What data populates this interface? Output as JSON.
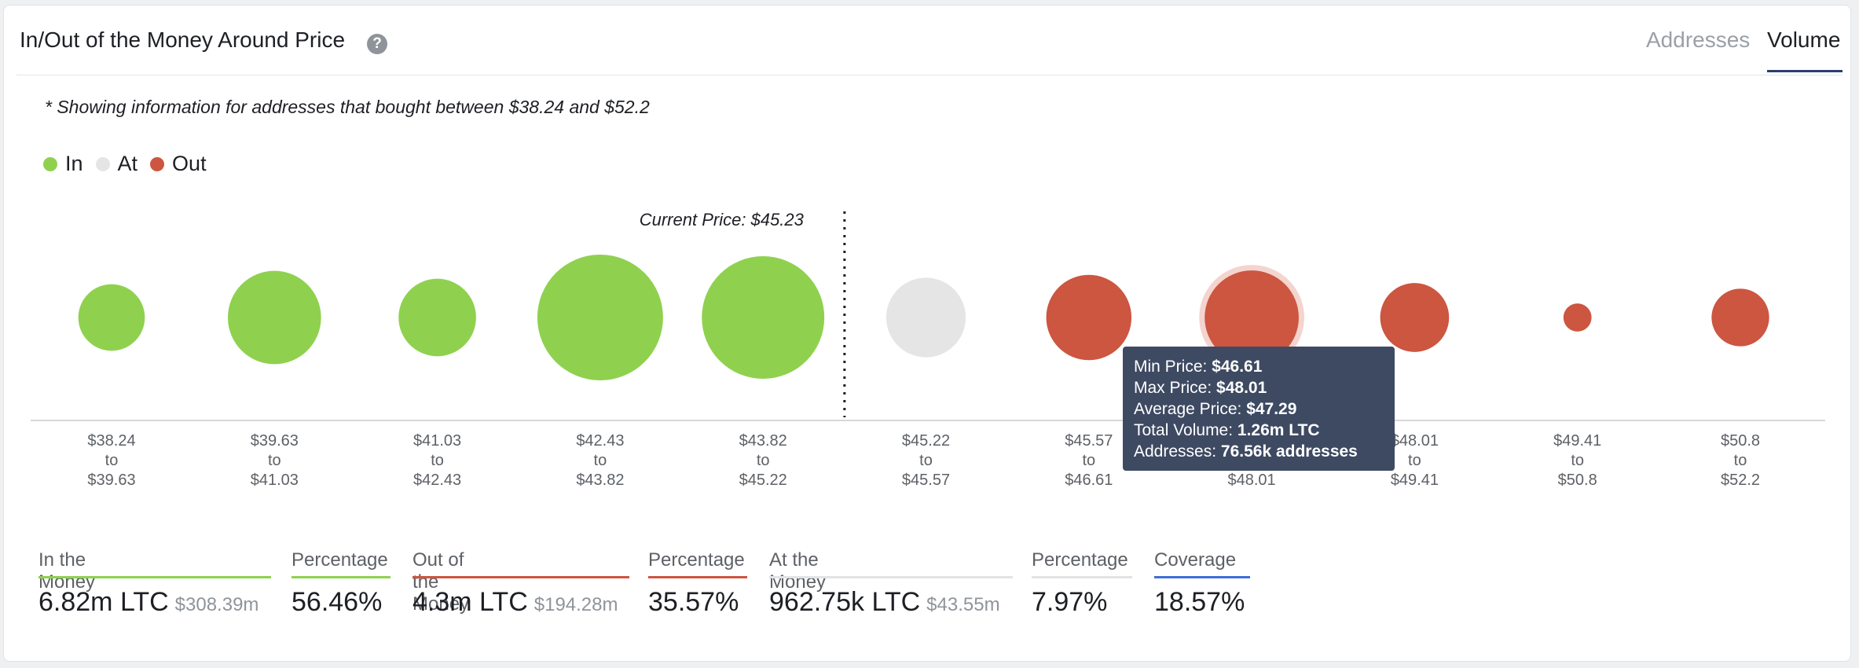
{
  "header": {
    "title": "In/Out of the Money Around Price",
    "help_icon": "question-icon",
    "tabs": [
      {
        "label": "Addresses",
        "active": false
      },
      {
        "label": "Volume",
        "active": true
      }
    ]
  },
  "note": "* Showing information for addresses that bought between $38.24 and $52.2",
  "legend": [
    {
      "label": "In",
      "color": "#8fd14f"
    },
    {
      "label": "At",
      "color": "#e5e5e5"
    },
    {
      "label": "Out",
      "color": "#cc5640"
    }
  ],
  "chart_data": {
    "type": "bubble",
    "current_price_label": "Current Price: $45.23",
    "current_price": 45.23,
    "bubbles": [
      {
        "from": "$38.24",
        "to": "$39.63",
        "status": "in",
        "relative_size": 0.28
      },
      {
        "from": "$39.63",
        "to": "$41.03",
        "status": "in",
        "relative_size": 0.55
      },
      {
        "from": "$41.03",
        "to": "$42.43",
        "status": "in",
        "relative_size": 0.38
      },
      {
        "from": "$42.43",
        "to": "$43.82",
        "status": "in",
        "relative_size": 1.0
      },
      {
        "from": "$43.82",
        "to": "$45.22",
        "status": "in",
        "relative_size": 0.95
      },
      {
        "from": "$45.22",
        "to": "$45.57",
        "status": "at",
        "relative_size": 0.4
      },
      {
        "from": "$45.57",
        "to": "$46.61",
        "status": "out",
        "relative_size": 0.46
      },
      {
        "from": "$46.61",
        "to": "$48.01",
        "status": "out",
        "relative_size": 0.56,
        "highlighted": true
      },
      {
        "from": "$48.01",
        "to": "$49.41",
        "status": "out",
        "relative_size": 0.3
      },
      {
        "from": "$49.41",
        "to": "$50.8",
        "status": "out",
        "relative_size": 0.05
      },
      {
        "from": "$50.8",
        "to": "$52.2",
        "status": "out",
        "relative_size": 0.21
      }
    ],
    "tick_connector": "to",
    "tooltip": [
      {
        "label": "Min Price:",
        "value": "$46.61"
      },
      {
        "label": "Max Price:",
        "value": "$48.01"
      },
      {
        "label": "Average Price:",
        "value": "$47.29"
      },
      {
        "label": "Total Volume:",
        "value": "1.26m LTC"
      },
      {
        "label": "Addresses:",
        "value": "76.56k addresses"
      }
    ]
  },
  "stats": {
    "in_money": {
      "label": "In the Money",
      "value": "6.82m LTC",
      "sub": "$308.39m",
      "color": "#8fd14f"
    },
    "in_pct": {
      "label": "Percentage",
      "value": "56.46%",
      "color": "#8fd14f"
    },
    "out_money": {
      "label": "Out of the Money",
      "value": "4.3m LTC",
      "sub": "$194.28m",
      "color": "#cc5640"
    },
    "out_pct": {
      "label": "Percentage",
      "value": "35.57%",
      "color": "#cc5640"
    },
    "at_money": {
      "label": "At the Money",
      "value": "962.75k LTC",
      "sub": "$43.55m",
      "color": "#e2e3e5"
    },
    "at_pct": {
      "label": "Percentage",
      "value": "7.97%",
      "color": "#e2e3e5"
    },
    "coverage": {
      "label": "Coverage",
      "value": "18.57%",
      "color": "#3e6fd8"
    }
  }
}
